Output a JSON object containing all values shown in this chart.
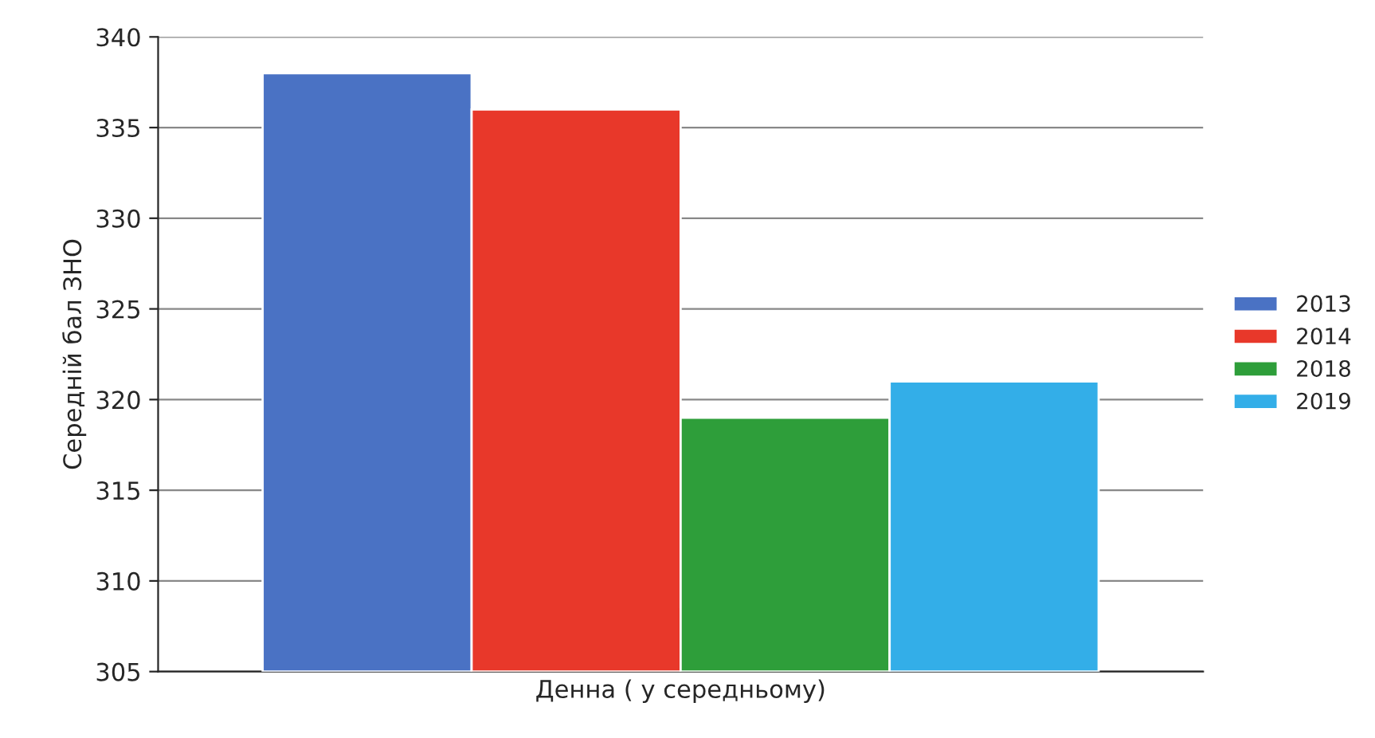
{
  "chart_data": {
    "type": "bar",
    "ylabel": "Середній бал ЗНО",
    "categories": [
      "Денна ( у середньому)"
    ],
    "series": [
      {
        "name": "2013",
        "color": "#4a72c4",
        "values": [
          338
        ]
      },
      {
        "name": "2014",
        "color": "#e8382a",
        "values": [
          336
        ]
      },
      {
        "name": "2018",
        "color": "#2e9e3a",
        "values": [
          319
        ]
      },
      {
        "name": "2019",
        "color": "#33aee8",
        "values": [
          321
        ]
      }
    ],
    "ylim": [
      305,
      340
    ],
    "yticks": [
      305,
      310,
      315,
      320,
      325,
      330,
      335,
      340
    ],
    "grid": "y",
    "legend": "right"
  }
}
